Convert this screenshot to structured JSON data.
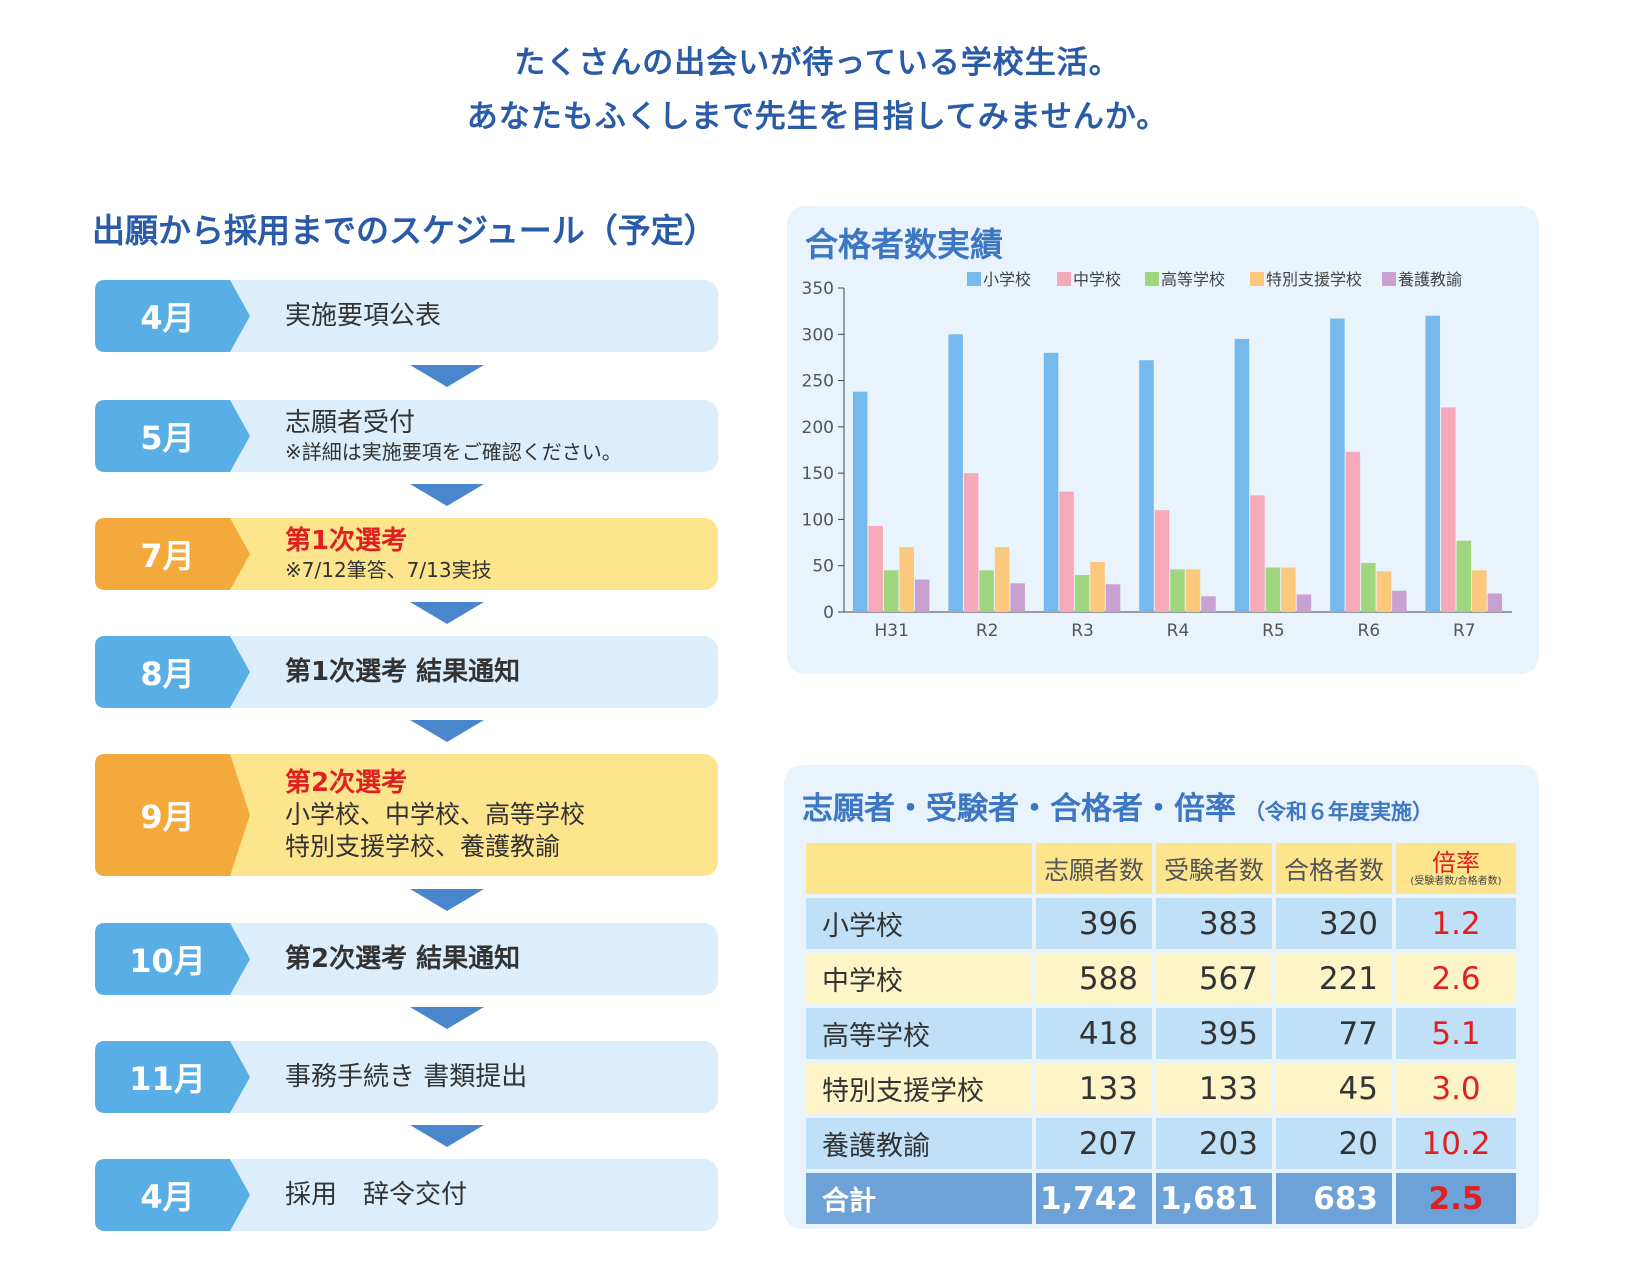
{
  "header": {
    "line1": "たくさんの出会いが待っている学校生活。",
    "line2": "あなたもふくしまで先生を目指してみませんか。"
  },
  "schedule": {
    "title": "出願から採用までのスケジュール（予定）",
    "steps": [
      {
        "month": "4月",
        "main": "実施要項公表",
        "note": ""
      },
      {
        "month": "5月",
        "main": "志願者受付",
        "note": "※詳細は実施要項をご確認ください。"
      },
      {
        "month": "7月",
        "main": "第1次選考",
        "note": "※7/12筆答、7/13実技"
      },
      {
        "month": "8月",
        "main": "第1次選考 結果通知",
        "note": ""
      },
      {
        "month": "9月",
        "main": "第2次選考",
        "sub1": "小学校、中学校、高等学校",
        "sub2": "特別支援学校、養護教諭"
      },
      {
        "month": "10月",
        "main": "第2次選考 結果通知",
        "note": ""
      },
      {
        "month": "11月",
        "main": "事務手続き 書類提出",
        "note": ""
      },
      {
        "month": "4月",
        "main": "採用　辞令交付",
        "note": ""
      }
    ],
    "colors": {
      "blue": "#5aaee6",
      "orange": "#f4a93c",
      "arrow": "#4a86cc"
    }
  },
  "chart_data": {
    "type": "bar",
    "title": "合格者数実績",
    "categories": [
      "H31",
      "R2",
      "R3",
      "R4",
      "R5",
      "R6",
      "R7"
    ],
    "ylim": [
      0,
      350
    ],
    "yticks": [
      0,
      50,
      100,
      150,
      200,
      250,
      300,
      350
    ],
    "grid": false,
    "legend": "top-right",
    "series": [
      {
        "name": "小学校",
        "color": "#76b9ec",
        "values": [
          238,
          300,
          280,
          272,
          295,
          317,
          320
        ]
      },
      {
        "name": "中学校",
        "color": "#f6a9b9",
        "values": [
          93,
          150,
          130,
          110,
          126,
          173,
          221
        ]
      },
      {
        "name": "高等学校",
        "color": "#9fd67e",
        "values": [
          45,
          45,
          40,
          46,
          48,
          53,
          77
        ]
      },
      {
        "name": "特別支援学校",
        "color": "#fbc87c",
        "values": [
          70,
          70,
          54,
          46,
          48,
          44,
          45
        ]
      },
      {
        "name": "養護教諭",
        "color": "#c9a1d1",
        "values": [
          35,
          31,
          30,
          17,
          19,
          23,
          20
        ]
      }
    ]
  },
  "table": {
    "title": "志願者・受験者・合格者・倍率",
    "subtitle": "（令和６年度実施）",
    "headers": [
      "",
      "志願者数",
      "受験者数",
      "合格者数"
    ],
    "rate_header": "倍率",
    "rate_sub": "(受験者数/合格者数)",
    "rows": [
      {
        "label": "小学校",
        "applicants": "396",
        "examinees": "383",
        "passed": "320",
        "rate": "1.2"
      },
      {
        "label": "中学校",
        "applicants": "588",
        "examinees": "567",
        "passed": "221",
        "rate": "2.6"
      },
      {
        "label": "高等学校",
        "applicants": "418",
        "examinees": "395",
        "passed": "77",
        "rate": "5.1"
      },
      {
        "label": "特別支援学校",
        "applicants": "133",
        "examinees": "133",
        "passed": "45",
        "rate": "3.0"
      },
      {
        "label": "養護教諭",
        "applicants": "207",
        "examinees": "203",
        "passed": "20",
        "rate": "10.2"
      }
    ],
    "total": {
      "label": "合計",
      "applicants": "1,742",
      "examinees": "1,681",
      "passed": "683",
      "rate": "2.5"
    }
  }
}
